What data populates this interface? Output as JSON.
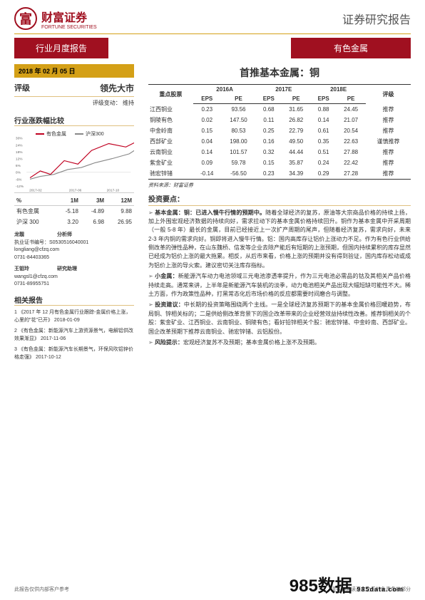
{
  "header": {
    "logo_zh": "财富证券",
    "logo_en": "FORTUNE SECURITIES",
    "top_right": "证券研究报告"
  },
  "tabs": {
    "left": "行业月度报告",
    "right": "有色金属"
  },
  "left": {
    "date": "2018 年 02 月 05 日",
    "rating_label": "评级",
    "rating_value": "领先大市",
    "rating_sub_label": "评级变动：",
    "rating_sub_value": "维持",
    "compare_title": "行业涨跌幅比较",
    "chart": {
      "series": [
        {
          "name": "有色金属",
          "color": "#c00020"
        },
        {
          "name": "沪深300",
          "color": "#888888"
        }
      ],
      "y_ticks": [
        "30%",
        "24%",
        "18%",
        "12%",
        "6%",
        "0%",
        "-6%",
        "-12%"
      ],
      "x_ticks": [
        "2017-02",
        "2017-06",
        "2017-10"
      ],
      "line1": "5,70 20,60 35,65 55,45 75,50 95,30 120,20 145,25 165,15",
      "line2": "5,72 20,68 40,65 60,58 80,55 100,48 125,42 150,35 165,25"
    },
    "perf": {
      "head": [
        "%",
        "1M",
        "3M",
        "12M"
      ],
      "rows": [
        [
          "有色金属",
          "-5.18",
          "-4.89",
          "9.88"
        ],
        [
          "沪深 300",
          "3.20",
          "6.98",
          "26.95"
        ]
      ]
    },
    "analysts_title": "",
    "analysts": [
      {
        "name": "龙靓",
        "role": "分析师",
        "lines": [
          "执业证书编号：S0530516040001",
          "longliang@cfzq.com",
          "0731-84403365"
        ]
      },
      {
        "name": "王钼玲",
        "role": "研究助理",
        "lines": [
          "wangsl1@cfzq.com",
          "0731-89955751"
        ]
      }
    ],
    "related_title": "相关报告",
    "related": [
      "1 《2017 年 12 月有色金属行业跟踪-金属价格上涨，心里的\"花\"已开》 2018-01-09",
      "2 《有色金属：新能源汽车上游资源景气，电解铝供改效果渐显》 2017-11-06",
      "3 《有色金属：新能源汽车长期景气，环保风吹铝锌价格走强》 2017-10-12"
    ]
  },
  "right": {
    "main_title": "首推基本金属：铜",
    "table_title": "重点股票",
    "years": [
      "2016A",
      "2017E",
      "2018E"
    ],
    "cols": [
      "EPS",
      "PE"
    ],
    "rating_head": "评级",
    "rows": [
      [
        "江西铜业",
        "0.23",
        "93.56",
        "0.68",
        "31.65",
        "0.88",
        "24.45",
        "推荐"
      ],
      [
        "铜陵有色",
        "0.02",
        "147.50",
        "0.11",
        "26.82",
        "0.14",
        "21.07",
        "推荐"
      ],
      [
        "中金岭南",
        "0.15",
        "80.53",
        "0.25",
        "22.79",
        "0.61",
        "20.54",
        "推荐"
      ],
      [
        "西部矿业",
        "0.04",
        "198.00",
        "0.16",
        "49.50",
        "0.35",
        "22.63",
        "谨慎推荐"
      ],
      [
        "云南铜业",
        "0.14",
        "101.57",
        "0.32",
        "44.44",
        "0.51",
        "27.88",
        "推荐"
      ],
      [
        "紫金矿业",
        "0.09",
        "59.78",
        "0.15",
        "35.87",
        "0.24",
        "22.42",
        "推荐"
      ],
      [
        "驰宏锌锗",
        "-0.14",
        "-56.50",
        "0.23",
        "34.39",
        "0.29",
        "27.28",
        "推荐"
      ]
    ],
    "source": "资料来源：财富证券",
    "invest_title": "投资要点：",
    "bullets": [
      {
        "lead": "基本金属：铜：已进入慢牛行情的预期中。",
        "body": "随着全球经济的复苏，原油等大宗商品价格的持续上扬，加上外围宏观经济数据的持续向好，需求拉动下的基本金属价格持续回升。铜作为基本金属中开采周期（一般 5-8 年）最长的金属，目前已经接近上一次扩产周期的尾声，但随着经济复苏，需求向好，未来 2-3 年内铜的需求向好。铜即将进入慢牛行情。铝：国内高库存让铝价上涨动力不足。作为有色行业供给侧改革的弹性品种，在山东魏桥、信发等企业去除产能后有短期的上涨预期，但国内持续累积的库存显然已经成为铝价上涨的最大拖累。相反，从后市来看，价格上涨的预期并没有得到验证，国内库存松动或成为铝价上涨的导火索。建议密切关注库存指标。"
      },
      {
        "lead": "小金属：",
        "body": "新能源汽车动力电池领域三元电池渗透率提升，作为三元电池必需品的钴及其相关产品价格持续走高。通常来讲，上半年是新能源汽车装机的淡季，动力电池相关产品出现大幅短缺可能性不大。稀土方面，作为政策性品种，打黑常态化后市场价格的反应都需要时间磨合与调整。"
      },
      {
        "lead": "投资建议：",
        "body": "中长期的投资策略围绕两个主线。一是全球经济复苏预期下的基本金属价格回暖趋势，布局铜、锌相关标的；二是供给侧改革背景下的国企改革带来的企业经营效益持续性改善。推荐铜相关的个股：紫金矿业、江西铜业、云南铜业、铜陵有色；看好铅锌相关个股：驰宏锌锗、中金岭南、西部矿业。国企改革预期下推荐云南铜业、驰宏锌锗、云铝股份。"
      },
      {
        "lead": "风险提示：",
        "body": "宏观经济复苏不及预期；基本金属价格上涨不及预期。"
      }
    ]
  },
  "footer": {
    "left": "此报告仅供内部客户参考",
    "right": "请务必阅读正文之后的免责条款部分"
  },
  "watermark": {
    "big": "985数据",
    "sub": "985data.com"
  }
}
